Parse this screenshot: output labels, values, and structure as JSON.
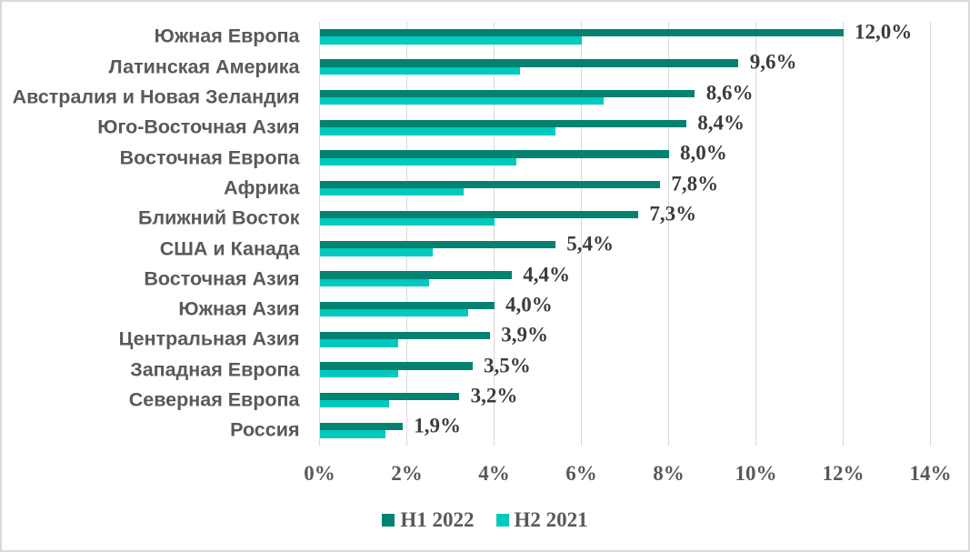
{
  "chart_data": {
    "type": "bar",
    "orientation": "horizontal",
    "title": "",
    "xlabel": "",
    "ylabel": "",
    "categories": [
      "Южная Европа",
      "Латинская Америка",
      "Австралия и Новая Зеландия",
      "Юго-Восточная Азия",
      "Восточная Европа",
      "Африка",
      "Ближний Восток",
      "США и Канада",
      "Восточная Азия",
      "Южная Азия",
      "Центральная Азия",
      "Западная Европа",
      "Северная Европа",
      "Россия"
    ],
    "series": [
      {
        "name": "H1 2022",
        "color": "#048271",
        "values": [
          12.0,
          9.6,
          8.6,
          8.4,
          8.0,
          7.8,
          7.3,
          5.4,
          4.4,
          4.0,
          3.9,
          3.5,
          3.2,
          1.9
        ]
      },
      {
        "name": "H2 2021",
        "color": "#00CABD",
        "values": [
          6.0,
          4.6,
          6.5,
          5.4,
          4.5,
          3.3,
          4.0,
          2.6,
          2.5,
          3.4,
          1.8,
          1.8,
          1.6,
          1.5
        ]
      }
    ],
    "data_labels": [
      "12,0%",
      "9,6%",
      "8,6%",
      "8,4%",
      "8,0%",
      "7,8%",
      "7,3%",
      "5,4%",
      "4,4%",
      "4,0%",
      "3,9%",
      "3,5%",
      "3,2%",
      "1,9%"
    ],
    "data_labels_series": "H1 2022",
    "x_ticks": [
      "0%",
      "2%",
      "4%",
      "6%",
      "8%",
      "10%",
      "12%",
      "14%"
    ],
    "xlim": [
      0,
      14
    ],
    "grid": "vertical",
    "legend_position": "bottom-center",
    "colors": {
      "grid": "#D9D9D9",
      "category_label": "#595959",
      "tick_label": "#595959",
      "data_label": "#3C3C3C",
      "border": "#D9D9D9",
      "background": "#FFFFFF"
    }
  }
}
